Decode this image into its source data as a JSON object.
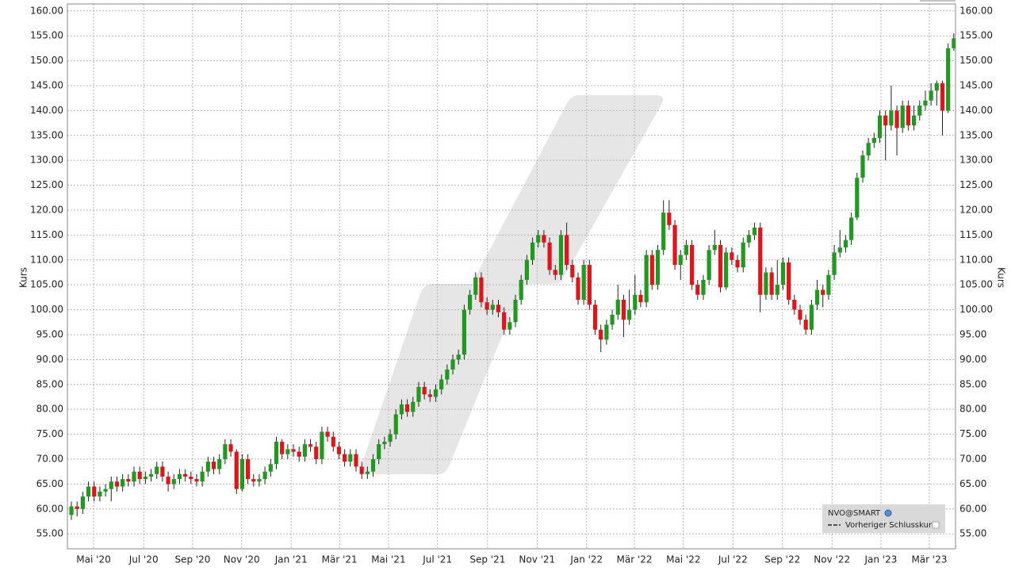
{
  "chart_data": {
    "type": "candlestick",
    "y_label": "Kurs",
    "y2_label": "Kurs",
    "categories": [
      null,
      null,
      null,
      null,
      null,
      null,
      null,
      null,
      null,
      null,
      null,
      null,
      null,
      null,
      null,
      null,
      null,
      null,
      null,
      null,
      null,
      null,
      null,
      null,
      null,
      null,
      null,
      null,
      null,
      null,
      null,
      null,
      null,
      null,
      null,
      null,
      null,
      null,
      null,
      null,
      null,
      null,
      null,
      null,
      null,
      null,
      null,
      null,
      null,
      null,
      null,
      null,
      null,
      null,
      null,
      null,
      null,
      null,
      null,
      null,
      null,
      null,
      null,
      null,
      null,
      null,
      null,
      null,
      null,
      null,
      null,
      null,
      null,
      null,
      null,
      null,
      null,
      null,
      null,
      null,
      null,
      null,
      null,
      null,
      null,
      null,
      null,
      null,
      null,
      null,
      null,
      null,
      null,
      null,
      null,
      null,
      null,
      null,
      null,
      null,
      null,
      null,
      null,
      null,
      null,
      null,
      null,
      null,
      null,
      null,
      null,
      null,
      null,
      null,
      null,
      null,
      null,
      null,
      null,
      null,
      null,
      null,
      null,
      null,
      null,
      null,
      null,
      null,
      null,
      null,
      null,
      null,
      null,
      null,
      null,
      null,
      null,
      null,
      null,
      null,
      null,
      null,
      null,
      null,
      null,
      null,
      null,
      null,
      null,
      null,
      null,
      null,
      null,
      null,
      null,
      null
    ],
    "open": [
      58.8,
      60.5,
      60,
      62.5,
      64.5,
      62.5,
      63.5,
      64,
      65.5,
      64.5,
      66,
      65.5,
      67.5,
      66,
      66.5,
      67,
      68.5,
      66.5,
      65,
      66,
      67,
      66.5,
      66,
      65.5,
      67.5,
      69.5,
      68,
      70,
      73,
      71.5,
      64,
      70,
      66,
      65.5,
      66,
      67.5,
      69,
      73.5,
      71,
      72,
      71.5,
      70.5,
      73,
      72.5,
      70,
      75.5,
      74.5,
      72.5,
      71,
      69.5,
      71,
      68.5,
      67,
      67.5,
      70,
      73,
      73.5,
      75,
      79,
      81,
      79.5,
      81.5,
      84.5,
      83,
      82.5,
      84,
      86,
      88,
      90,
      91,
      100,
      103,
      106.5,
      101.5,
      100,
      101,
      99.5,
      96,
      97.5,
      102,
      106,
      110,
      113.5,
      115,
      113.5,
      108,
      107,
      115,
      109,
      106.5,
      102,
      109,
      101,
      96,
      94,
      97,
      99,
      102,
      98,
      100,
      103,
      101.5,
      111,
      105,
      112,
      119.5,
      117,
      109,
      111,
      113,
      105,
      103,
      106,
      112,
      113,
      104.5,
      111.5,
      110,
      108.5,
      113.5,
      115,
      116.5,
      103,
      107.5,
      103,
      105,
      109.5,
      102,
      100,
      98,
      96,
      101,
      104,
      103,
      107,
      111.5,
      112.5,
      114,
      118.5,
      126.5,
      131,
      133.5,
      134.5,
      139,
      137,
      140,
      136.5,
      141,
      137,
      139,
      141,
      142,
      144,
      145.5,
      140,
      152.5
    ],
    "high": [
      61.5,
      61.5,
      63.5,
      65.5,
      65.5,
      64.5,
      65,
      66.5,
      66.5,
      67,
      67,
      68.5,
      68.5,
      67.5,
      68,
      69.5,
      69.5,
      67.5,
      67,
      68,
      68,
      67.5,
      67,
      68.5,
      70.5,
      70.5,
      71,
      74,
      74,
      72,
      71,
      71,
      67,
      67,
      68.5,
      70,
      74.5,
      74,
      73,
      73,
      72.5,
      74,
      74,
      73.5,
      76.5,
      76.5,
      75.5,
      73.5,
      72,
      72,
      72,
      69.5,
      68.5,
      71,
      74,
      74.5,
      76,
      80,
      82,
      82,
      82.5,
      85.5,
      85.5,
      84,
      85,
      87,
      89,
      91,
      92,
      101,
      104,
      107.5,
      107.5,
      102.5,
      102,
      102,
      100.5,
      98.5,
      103,
      107,
      111,
      114.5,
      116,
      116,
      114.5,
      109,
      116,
      117.5,
      110,
      107.5,
      110,
      110,
      102,
      97,
      98,
      100,
      105,
      103,
      104,
      107,
      104,
      112,
      112,
      113,
      122,
      122,
      118,
      112,
      114,
      114,
      106,
      107,
      113,
      116,
      114,
      112.5,
      112.5,
      111,
      114.5,
      116,
      117.5,
      117.5,
      108.5,
      108.5,
      110,
      110.5,
      110.5,
      103,
      101,
      99,
      102,
      106,
      105,
      108,
      113,
      116,
      115,
      119.5,
      127.5,
      132,
      134.5,
      135.5,
      140,
      140,
      145,
      141,
      142,
      142,
      141,
      142,
      144,
      145.5,
      146,
      146,
      153.5,
      155.5
    ],
    "low": [
      57.8,
      58.5,
      59,
      61.5,
      61.5,
      61.5,
      62.5,
      61.5,
      63.5,
      63.5,
      64.5,
      64.5,
      65,
      65,
      65.5,
      66,
      65.5,
      63.5,
      64,
      65,
      65.5,
      65,
      64.5,
      64.5,
      66.5,
      67,
      67,
      69,
      70.5,
      63,
      63.5,
      65,
      64.5,
      64.5,
      65,
      66.5,
      68,
      70,
      70,
      70.5,
      69.5,
      69.5,
      71.5,
      69,
      69,
      73.5,
      71.5,
      70,
      68.5,
      68.5,
      67.5,
      66,
      66,
      66.5,
      69,
      72,
      72.5,
      74,
      78,
      78.5,
      78.5,
      80.5,
      82,
      81.5,
      81.5,
      83,
      85,
      87,
      89,
      90,
      99,
      102,
      100.5,
      99,
      99,
      98.5,
      95,
      95,
      96.5,
      101,
      105,
      109,
      112.5,
      112.5,
      107,
      106,
      106,
      108,
      105.5,
      101,
      101,
      100,
      95,
      91.5,
      93,
      96,
      98,
      94.5,
      97,
      99,
      100.5,
      100.5,
      104,
      104,
      111,
      116,
      108,
      106,
      110,
      104,
      102,
      102,
      105,
      111,
      103.5,
      104,
      109,
      107.5,
      107.5,
      112.5,
      114,
      99.5,
      102,
      102,
      102,
      104,
      101,
      99,
      97,
      95,
      95,
      100,
      100.5,
      102,
      106,
      110.5,
      111.5,
      113,
      118,
      125.5,
      130,
      132.5,
      133.5,
      130,
      136,
      131,
      135.5,
      136,
      136,
      138,
      140,
      141,
      141,
      135,
      139.5,
      152
    ],
    "close": [
      60.5,
      60,
      62.5,
      64.5,
      62.5,
      63.5,
      64,
      65.5,
      64.5,
      66,
      65.5,
      67.5,
      66,
      66.5,
      67,
      68.5,
      66.5,
      65,
      66,
      67,
      66.5,
      66,
      65.5,
      67.5,
      69.5,
      68,
      70,
      73,
      71.5,
      64,
      70,
      66,
      65.5,
      66,
      67.5,
      69,
      73.5,
      71,
      72,
      71.5,
      70.5,
      73,
      72.5,
      70,
      75.5,
      74.5,
      72.5,
      71,
      69.5,
      71,
      68.5,
      67,
      67.5,
      70,
      73,
      73.5,
      75,
      79,
      81,
      79.5,
      81.5,
      84.5,
      83,
      82.5,
      84,
      86,
      88,
      90,
      91,
      100,
      103,
      106.5,
      101.5,
      100,
      101,
      99.5,
      96,
      97.5,
      102,
      106,
      110,
      113.5,
      115,
      113.5,
      108,
      107,
      115,
      109,
      106.5,
      102,
      109,
      101,
      96,
      94,
      97,
      99,
      102,
      98,
      100,
      103,
      101.5,
      111,
      105,
      112,
      119.5,
      117,
      109,
      111,
      113,
      105,
      103,
      106,
      112,
      113,
      104.5,
      111.5,
      110,
      108.5,
      113.5,
      115,
      116.5,
      103,
      107.5,
      103,
      105,
      109.5,
      102,
      100,
      98,
      96,
      101,
      104,
      103,
      107,
      111.5,
      112.5,
      114,
      118.5,
      126.5,
      131,
      133.5,
      134.5,
      139,
      137,
      140,
      136.5,
      141,
      137,
      139,
      141,
      142,
      144,
      145.5,
      140,
      152.5,
      154.5
    ],
    "up_color": "#1e9b1e",
    "down_color": "#e3131b",
    "xlim": [
      -0.7,
      155.3
    ],
    "xticks": [
      {
        "value": 3.9,
        "label": "Mai '20"
      },
      {
        "value": 12.7,
        "label": "Jul '20"
      },
      {
        "value": 21.3,
        "label": "Sep '20"
      },
      {
        "value": 29.9,
        "label": "Nov '20"
      },
      {
        "value": 38.6,
        "label": "Jan '21"
      },
      {
        "value": 47.1,
        "label": "Mär '21"
      },
      {
        "value": 55.7,
        "label": "Mai '21"
      },
      {
        "value": 64.3,
        "label": "Jul '21"
      },
      {
        "value": 73.1,
        "label": "Sep '21"
      },
      {
        "value": 81.8,
        "label": "Nov '21"
      },
      {
        "value": 90.5,
        "label": "Jan '22"
      },
      {
        "value": 98.9,
        "label": "Mär '22"
      },
      {
        "value": 107.5,
        "label": "Mai '22"
      },
      {
        "value": 116.2,
        "label": "Jul '22"
      },
      {
        "value": 124.9,
        "label": "Sep '22"
      },
      {
        "value": 133.6,
        "label": "Nov '22"
      },
      {
        "value": 142.2,
        "label": "Jan '23"
      },
      {
        "value": 150.7,
        "label": "Mär '23"
      }
    ],
    "ylim": [
      52,
      161.4
    ],
    "yticks": [
      {
        "value": 55,
        "label": "55.00"
      },
      {
        "value": 60,
        "label": "60.00"
      },
      {
        "value": 65,
        "label": "65.00"
      },
      {
        "value": 70,
        "label": "70.00"
      },
      {
        "value": 75,
        "label": "75.00"
      },
      {
        "value": 80,
        "label": "80.00"
      },
      {
        "value": 85,
        "label": "85.00"
      },
      {
        "value": 90,
        "label": "90.00"
      },
      {
        "value": 95,
        "label": "95.00"
      },
      {
        "value": 100,
        "label": "100.00"
      },
      {
        "value": 105,
        "label": "105.00"
      },
      {
        "value": 110,
        "label": "110.00"
      },
      {
        "value": 115,
        "label": "115.00"
      },
      {
        "value": 120,
        "label": "120.00"
      },
      {
        "value": 125,
        "label": "125.00"
      },
      {
        "value": 130,
        "label": "130.00"
      },
      {
        "value": 135,
        "label": "135.00"
      },
      {
        "value": 140,
        "label": "140.00"
      },
      {
        "value": 145,
        "label": "145.00"
      },
      {
        "value": 150,
        "label": "150.00"
      },
      {
        "value": 155,
        "label": "155.00"
      },
      {
        "value": 160,
        "label": "160.00"
      }
    ],
    "grid": true,
    "legend": {
      "symbol": "NVO@SMART",
      "previous_close": "Vorheriger Schlusskurs"
    }
  }
}
